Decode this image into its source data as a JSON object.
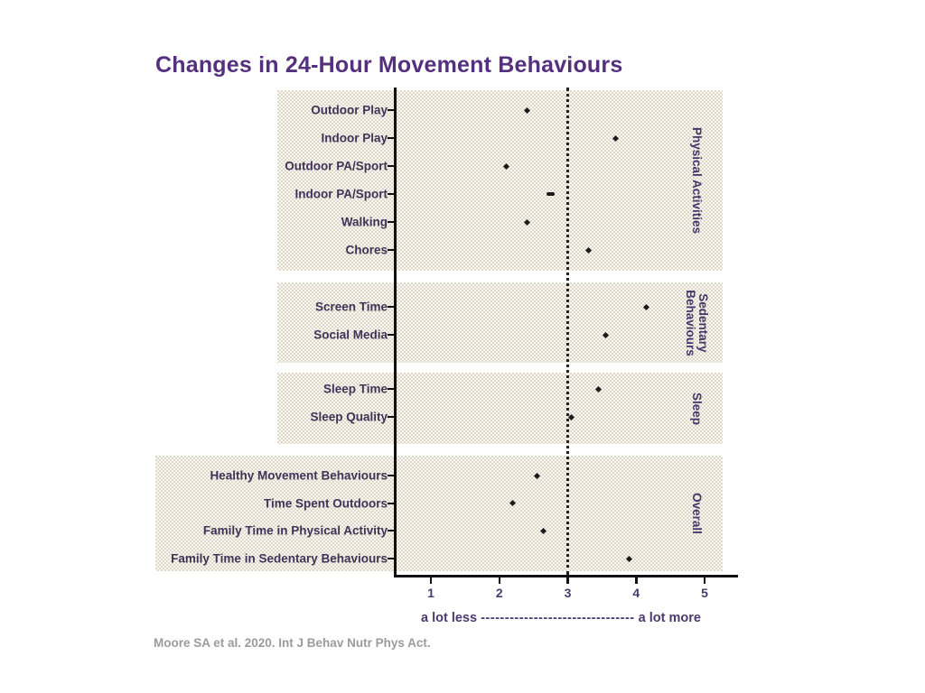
{
  "title": "Changes in 24-Hour Movement Behaviours",
  "citation": "Moore SA et al. 2020. Int J Behav Nutr Phys Act.",
  "x_axis_note": {
    "left": "a lot less",
    "dashes": "--------------------------------",
    "right": "a lot more"
  },
  "colors": {
    "title": "#54307e",
    "category_label": "#413357",
    "section_label": "#463569",
    "axis_text": "#4a3a6e",
    "marker": "#1b1b1b",
    "band_background": "#faf8f2",
    "band_dots": "#d6cdbb",
    "citation": "#9b9b9b"
  },
  "chart_data": {
    "type": "scatter",
    "title": "Changes in 24-Hour Movement Behaviours",
    "xlabel": "",
    "ylabel": "",
    "x_range": [
      0.5,
      5.5
    ],
    "x_ticks": [
      1,
      2,
      3,
      4,
      5
    ],
    "reference_line_x": 3,
    "legend": "none",
    "grid": false,
    "groups": [
      {
        "name": "Physical Activities",
        "items": [
          {
            "label": "Outdoor Play",
            "value": 2.4
          },
          {
            "label": "Indoor Play",
            "value": 3.7
          },
          {
            "label": "Outdoor PA/Sport",
            "value": 2.1
          },
          {
            "label": "Indoor PA/Sport",
            "value": 2.75,
            "wide_marker": true
          },
          {
            "label": "Walking",
            "value": 2.4
          },
          {
            "label": "Chores",
            "value": 3.3
          }
        ]
      },
      {
        "name": "Sedentary\nBehaviours",
        "items": [
          {
            "label": "Screen Time",
            "value": 4.15
          },
          {
            "label": "Social Media",
            "value": 3.55
          }
        ]
      },
      {
        "name": "Sleep",
        "items": [
          {
            "label": "Sleep Time",
            "value": 3.45
          },
          {
            "label": "Sleep Quality",
            "value": 3.05
          }
        ]
      },
      {
        "name": "Overall",
        "items": [
          {
            "label": "Healthy Movement Behaviours",
            "value": 2.55
          },
          {
            "label": "Time Spent Outdoors",
            "value": 2.2
          },
          {
            "label": "Family Time in Physical Activity",
            "value": 2.65
          },
          {
            "label": "Family Time in Sedentary Behaviours",
            "value": 3.9
          }
        ]
      }
    ]
  }
}
